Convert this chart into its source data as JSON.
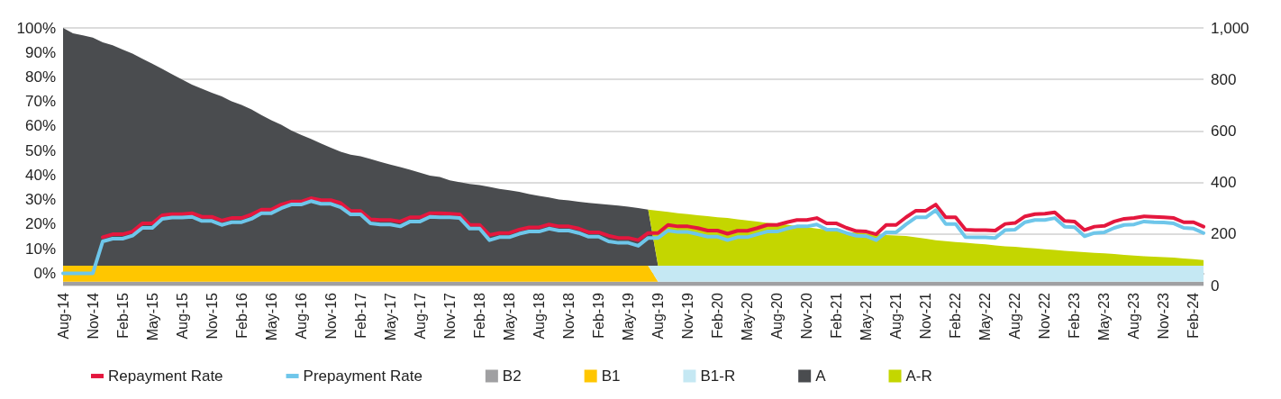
{
  "chart_data": {
    "type": "area",
    "stacked": true,
    "legend": "bottom",
    "grid": true,
    "categories": [
      "Aug-14",
      null,
      null,
      "Nov-14",
      null,
      null,
      "Feb-15",
      null,
      null,
      "May-15",
      null,
      null,
      "Aug-15",
      null,
      null,
      "Nov-15",
      null,
      null,
      "Feb-16",
      null,
      null,
      "May-16",
      null,
      null,
      "Aug-16",
      null,
      null,
      "Nov-16",
      null,
      null,
      "Feb-17",
      null,
      null,
      "May-17",
      null,
      null,
      "Aug-17",
      null,
      null,
      "Nov-17",
      null,
      null,
      "Feb-18",
      null,
      null,
      "May-18",
      null,
      null,
      "Aug-18",
      null,
      null,
      "Nov-18",
      null,
      null,
      "Feb-19",
      null,
      null,
      "May-19",
      null,
      null,
      "Aug-19",
      null,
      null,
      "Nov-19",
      null,
      null,
      "Feb-20",
      null,
      null,
      "May-20",
      null,
      null,
      "Aug-20",
      null,
      null,
      "Nov-20",
      null,
      null,
      "Feb-21",
      null,
      null,
      "May-21",
      null,
      null,
      "Aug-21",
      null,
      null,
      "Nov-21",
      null,
      null,
      "Feb-22",
      null,
      null,
      "May-22",
      null,
      null,
      "Aug-22",
      null,
      null,
      "Nov-22",
      null,
      null,
      "Feb-23",
      null,
      null,
      "May-23",
      null,
      null,
      "Aug-23",
      null,
      null,
      "Nov-23",
      null,
      null,
      "Feb-24",
      null
    ],
    "ylim": [
      -5,
      100
    ],
    "yticks": [
      {
        "value": 0,
        "label": "0%"
      },
      {
        "value": 10,
        "label": "10%"
      },
      {
        "value": 20,
        "label": "20%"
      },
      {
        "value": 30,
        "label": "30%"
      },
      {
        "value": 40,
        "label": "40%"
      },
      {
        "value": 50,
        "label": "50%"
      },
      {
        "value": 60,
        "label": "60%"
      },
      {
        "value": 70,
        "label": "70%"
      },
      {
        "value": 80,
        "label": "80%"
      },
      {
        "value": 90,
        "label": "90%"
      },
      {
        "value": 100,
        "label": "100%"
      }
    ],
    "y2lim": [
      0,
      1000
    ],
    "y2ticks": [
      0,
      200,
      400,
      600,
      800,
      {
        "value": 1000,
        "label": "1,000"
      }
    ],
    "series": [
      {
        "name": "Repayment Rate",
        "type": "line",
        "color": "#e4173e",
        "values": [
          null,
          null,
          null,
          null,
          14.7,
          15.9,
          15.9,
          17.0,
          20.3,
          20.3,
          23.6,
          24.1,
          24.1,
          24.5,
          23.0,
          23.0,
          21.5,
          22.5,
          22.5,
          24.0,
          25.9,
          25.9,
          28.0,
          29.2,
          29.2,
          30.6,
          29.8,
          29.8,
          28.6,
          25.4,
          25.4,
          22.0,
          21.7,
          21.7,
          21.1,
          22.8,
          22.8,
          24.5,
          24.5,
          24.3,
          24.0,
          19.7,
          19.7,
          15.6,
          16.4,
          16.4,
          17.8,
          18.7,
          18.7,
          19.9,
          19.1,
          19.1,
          18.2,
          16.7,
          16.7,
          15.3,
          14.4,
          14.4,
          13.5,
          16.4,
          16.4,
          19.7,
          19.1,
          19.1,
          18.4,
          17.4,
          17.4,
          16.1,
          17.3,
          17.3,
          18.4,
          19.7,
          19.7,
          20.8,
          21.7,
          21.7,
          22.5,
          20.3,
          20.3,
          18.5,
          17.2,
          17.0,
          15.9,
          19.7,
          19.7,
          22.8,
          25.5,
          25.5,
          28.0,
          22.8,
          22.8,
          17.8,
          17.6,
          17.6,
          17.4,
          20.1,
          20.5,
          23.2,
          24.1,
          24.3,
          24.8,
          21.3,
          21.1,
          17.6,
          19.0,
          19.3,
          21.1,
          22.2,
          22.5,
          23.2,
          23.0,
          22.8,
          22.5,
          20.8,
          20.8,
          19.0
        ]
      },
      {
        "name": "Prepayment Rate",
        "type": "line",
        "color": "#6ec6ea",
        "values": [
          0,
          0,
          0,
          0,
          13.0,
          14.1,
          14.1,
          15.3,
          18.5,
          18.5,
          22.2,
          22.7,
          22.7,
          23.0,
          21.3,
          21.3,
          19.7,
          20.8,
          20.8,
          22.2,
          24.5,
          24.5,
          26.5,
          28.0,
          28.0,
          29.4,
          28.3,
          28.3,
          26.9,
          24.0,
          24.0,
          20.3,
          19.9,
          19.9,
          19.1,
          21.1,
          21.1,
          23.0,
          22.8,
          22.8,
          22.5,
          18.2,
          18.2,
          13.5,
          14.7,
          14.7,
          16.1,
          17.0,
          17.0,
          18.2,
          17.4,
          17.4,
          16.4,
          14.9,
          14.9,
          13.0,
          12.4,
          12.4,
          11.2,
          14.4,
          14.4,
          17.4,
          16.8,
          16.8,
          15.9,
          14.9,
          14.9,
          13.5,
          14.7,
          14.7,
          15.9,
          17.0,
          17.0,
          18.2,
          19.1,
          19.1,
          19.9,
          17.8,
          17.8,
          16.4,
          15.3,
          15.1,
          13.5,
          16.7,
          16.7,
          19.9,
          22.8,
          22.8,
          25.7,
          20.1,
          20.1,
          14.7,
          14.6,
          14.6,
          14.4,
          17.6,
          17.8,
          20.8,
          21.7,
          21.7,
          22.5,
          19.0,
          18.8,
          15.1,
          16.4,
          16.7,
          18.5,
          19.7,
          19.9,
          21.1,
          20.8,
          20.7,
          20.3,
          18.5,
          18.2,
          16.4
        ]
      },
      {
        "name": "B2",
        "axis": "y2",
        "color": "#a0a0a2",
        "values": [
          15,
          15,
          15,
          15,
          15,
          15,
          15,
          15,
          15,
          15,
          15,
          15,
          15,
          15,
          15,
          15,
          15,
          15,
          15,
          15,
          15,
          15,
          15,
          15,
          15,
          15,
          15,
          15,
          15,
          15,
          15,
          15,
          15,
          15,
          15,
          15,
          15,
          15,
          15,
          15,
          15,
          15,
          15,
          15,
          15,
          15,
          15,
          15,
          15,
          15,
          15,
          15,
          15,
          15,
          15,
          15,
          15,
          15,
          15,
          15,
          15,
          15,
          15,
          15,
          15,
          15,
          15,
          15,
          15,
          15,
          15,
          15,
          15,
          15,
          15,
          15,
          15,
          15,
          15,
          15,
          15,
          15,
          15,
          15,
          15,
          15,
          15,
          15,
          15,
          15,
          15,
          15,
          15,
          15,
          15,
          15,
          15,
          15,
          15,
          15,
          15,
          15,
          15,
          15,
          15,
          15,
          15,
          15,
          15,
          15,
          15,
          15,
          15,
          15,
          15,
          15
        ]
      },
      {
        "name": "B1",
        "axis": "y2",
        "color": "#ffc600",
        "values": [
          62,
          62,
          62,
          62,
          62,
          62,
          62,
          62,
          62,
          62,
          62,
          62,
          62,
          62,
          62,
          62,
          62,
          62,
          62,
          62,
          62,
          62,
          62,
          62,
          62,
          62,
          62,
          62,
          62,
          62,
          62,
          62,
          62,
          62,
          62,
          62,
          62,
          62,
          62,
          62,
          62,
          62,
          62,
          62,
          62,
          62,
          62,
          62,
          62,
          62,
          62,
          62,
          62,
          62,
          62,
          62,
          62,
          62,
          62,
          62,
          0,
          null,
          null,
          null,
          null,
          null,
          null,
          null,
          null,
          null,
          null,
          null,
          null,
          null,
          null,
          null,
          null,
          null,
          null,
          null,
          null,
          null,
          null,
          null,
          null,
          null,
          null,
          null,
          null,
          null,
          null,
          null,
          null,
          null,
          null,
          null,
          null,
          null,
          null,
          null,
          null,
          null,
          null,
          null,
          null,
          null,
          null,
          null,
          null,
          null,
          null,
          null,
          null,
          null,
          null,
          null
        ]
      },
      {
        "name": "B1-R",
        "axis": "y2",
        "color": "#c5e8f3",
        "values": [
          null,
          null,
          null,
          null,
          null,
          null,
          null,
          null,
          null,
          null,
          null,
          null,
          null,
          null,
          null,
          null,
          null,
          null,
          null,
          null,
          null,
          null,
          null,
          null,
          null,
          null,
          null,
          null,
          null,
          null,
          null,
          null,
          null,
          null,
          null,
          null,
          null,
          null,
          null,
          null,
          null,
          null,
          null,
          null,
          null,
          null,
          null,
          null,
          null,
          null,
          null,
          null,
          null,
          null,
          null,
          null,
          null,
          null,
          null,
          0,
          62,
          62,
          62,
          62,
          62,
          62,
          62,
          62,
          62,
          62,
          62,
          62,
          62,
          62,
          62,
          62,
          62,
          62,
          62,
          62,
          62,
          62,
          62,
          62,
          62,
          62,
          62,
          62,
          62,
          62,
          62,
          62,
          62,
          62,
          62,
          62,
          62,
          62,
          62,
          62,
          62,
          62,
          62,
          62,
          62,
          62,
          62,
          62,
          62,
          62,
          62,
          62,
          62,
          62,
          62,
          62
        ]
      },
      {
        "name": "A",
        "axis": "y2",
        "color": "#4a4c4f",
        "values": [
          923,
          902,
          894,
          885,
          867,
          856,
          839,
          823,
          803,
          784,
          764,
          743,
          723,
          703,
          687,
          671,
          657,
          638,
          624,
          607,
          585,
          565,
          547,
          525,
          508,
          492,
          475,
          458,
          442,
          431,
          425,
          414,
          403,
          392,
          383,
          372,
          361,
          350,
          344,
          331,
          324,
          317,
          313,
          306,
          298,
          293,
          287,
          278,
          271,
          265,
          257,
          253,
          248,
          244,
          240,
          237,
          233,
          229,
          224,
          218,
          0,
          null,
          null,
          null,
          null,
          null,
          null,
          null,
          null,
          null,
          null,
          null,
          null,
          null,
          null,
          null,
          null,
          null,
          null,
          null,
          null,
          null,
          null,
          null,
          null,
          null,
          null,
          null,
          null,
          null,
          null,
          null,
          null,
          null,
          null,
          null,
          null,
          null,
          null,
          null,
          null,
          null,
          null,
          null,
          null,
          null,
          null,
          null,
          null,
          null,
          null,
          null,
          null,
          null,
          null,
          null
        ]
      },
      {
        "name": "A-R",
        "axis": "y2",
        "color": "#c4d600",
        "values": [
          null,
          null,
          null,
          null,
          null,
          null,
          null,
          null,
          null,
          null,
          null,
          null,
          null,
          null,
          null,
          null,
          null,
          null,
          null,
          null,
          null,
          null,
          null,
          null,
          null,
          null,
          null,
          null,
          null,
          null,
          null,
          null,
          null,
          null,
          null,
          null,
          null,
          null,
          null,
          null,
          null,
          null,
          null,
          null,
          null,
          null,
          null,
          null,
          null,
          null,
          null,
          null,
          null,
          null,
          null,
          null,
          null,
          null,
          null,
          0,
          213,
          209,
          204,
          200,
          196,
          192,
          188,
          185,
          180,
          176,
          171,
          166,
          164,
          159,
          154,
          149,
          144,
          140,
          135,
          131,
          128,
          125,
          122,
          119,
          117,
          115,
          110,
          105,
          99,
          95,
          92,
          89,
          86,
          83,
          79,
          75,
          73,
          70,
          67,
          64,
          61,
          58,
          55,
          52,
          50,
          48,
          45,
          42,
          39,
          37,
          35,
          33,
          31,
          28,
          25,
          22
        ]
      }
    ]
  }
}
